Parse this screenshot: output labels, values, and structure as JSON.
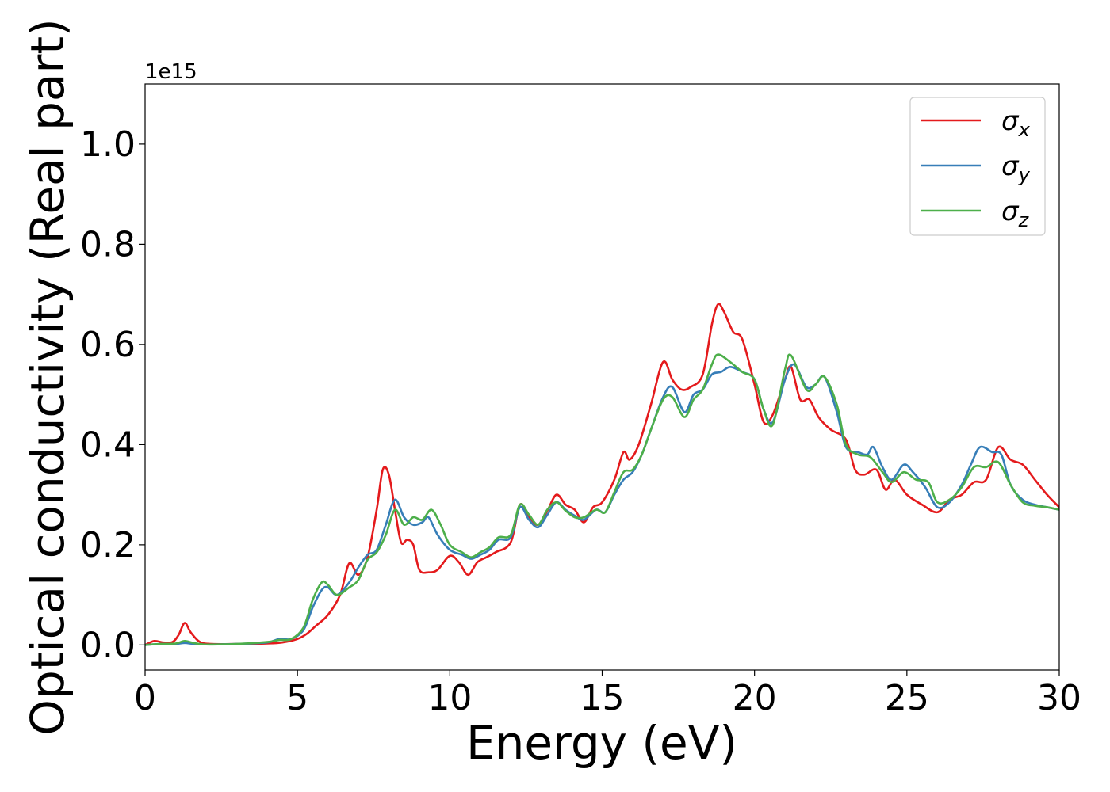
{
  "chart_data": {
    "type": "line",
    "title": "",
    "xlabel": "Energy (eV)",
    "ylabel": "Optical conductivity (Real part)",
    "y_offset_text": "1e15",
    "xlim": [
      0,
      30
    ],
    "ylim": [
      -0.05,
      1.12
    ],
    "x_ticks": [
      0,
      5,
      10,
      15,
      20,
      25,
      30
    ],
    "x_tick_labels": [
      "0",
      "5",
      "10",
      "15",
      "20",
      "25",
      "30"
    ],
    "y_ticks": [
      0.0,
      0.2,
      0.4,
      0.6,
      0.8,
      1.0
    ],
    "y_tick_labels": [
      "0.0",
      "0.2",
      "0.4",
      "0.6",
      "0.8",
      "1.0"
    ],
    "grid": false,
    "legend_position": "top-right",
    "series": [
      {
        "name": "σx",
        "label_base": "σ",
        "label_sub": "x",
        "color": "#e41a1c",
        "points": [
          [
            0,
            0.0
          ],
          [
            0.3,
            0.008
          ],
          [
            0.6,
            0.005
          ],
          [
            0.9,
            0.006
          ],
          [
            1.1,
            0.02
          ],
          [
            1.3,
            0.044
          ],
          [
            1.5,
            0.025
          ],
          [
            1.8,
            0.006
          ],
          [
            2.2,
            0.002
          ],
          [
            3.0,
            0.002
          ],
          [
            4.0,
            0.003
          ],
          [
            4.5,
            0.005
          ],
          [
            5.0,
            0.012
          ],
          [
            5.3,
            0.022
          ],
          [
            5.6,
            0.038
          ],
          [
            6.0,
            0.06
          ],
          [
            6.4,
            0.1
          ],
          [
            6.7,
            0.163
          ],
          [
            7.0,
            0.14
          ],
          [
            7.3,
            0.175
          ],
          [
            7.6,
            0.27
          ],
          [
            7.8,
            0.35
          ],
          [
            8.0,
            0.34
          ],
          [
            8.2,
            0.27
          ],
          [
            8.4,
            0.205
          ],
          [
            8.6,
            0.21
          ],
          [
            8.8,
            0.2
          ],
          [
            9.0,
            0.15
          ],
          [
            9.3,
            0.145
          ],
          [
            9.6,
            0.15
          ],
          [
            10.0,
            0.178
          ],
          [
            10.3,
            0.165
          ],
          [
            10.6,
            0.14
          ],
          [
            10.9,
            0.165
          ],
          [
            11.2,
            0.175
          ],
          [
            11.5,
            0.185
          ],
          [
            12.0,
            0.205
          ],
          [
            12.3,
            0.28
          ],
          [
            12.6,
            0.255
          ],
          [
            12.9,
            0.24
          ],
          [
            13.2,
            0.268
          ],
          [
            13.5,
            0.3
          ],
          [
            13.8,
            0.28
          ],
          [
            14.1,
            0.27
          ],
          [
            14.4,
            0.245
          ],
          [
            14.7,
            0.275
          ],
          [
            15.0,
            0.285
          ],
          [
            15.4,
            0.33
          ],
          [
            15.7,
            0.385
          ],
          [
            15.9,
            0.37
          ],
          [
            16.2,
            0.4
          ],
          [
            16.6,
            0.48
          ],
          [
            17.0,
            0.565
          ],
          [
            17.3,
            0.53
          ],
          [
            17.6,
            0.51
          ],
          [
            17.9,
            0.515
          ],
          [
            18.3,
            0.54
          ],
          [
            18.6,
            0.64
          ],
          [
            18.8,
            0.68
          ],
          [
            19.0,
            0.665
          ],
          [
            19.3,
            0.625
          ],
          [
            19.6,
            0.61
          ],
          [
            20.0,
            0.52
          ],
          [
            20.3,
            0.445
          ],
          [
            20.6,
            0.46
          ],
          [
            21.0,
            0.53
          ],
          [
            21.2,
            0.555
          ],
          [
            21.5,
            0.49
          ],
          [
            21.8,
            0.49
          ],
          [
            22.1,
            0.455
          ],
          [
            22.5,
            0.43
          ],
          [
            23.0,
            0.41
          ],
          [
            23.3,
            0.35
          ],
          [
            23.6,
            0.34
          ],
          [
            24.0,
            0.35
          ],
          [
            24.3,
            0.31
          ],
          [
            24.6,
            0.33
          ],
          [
            25.0,
            0.3
          ],
          [
            25.5,
            0.28
          ],
          [
            26.0,
            0.265
          ],
          [
            26.4,
            0.29
          ],
          [
            26.8,
            0.3
          ],
          [
            27.2,
            0.325
          ],
          [
            27.6,
            0.33
          ],
          [
            28.0,
            0.395
          ],
          [
            28.4,
            0.37
          ],
          [
            28.8,
            0.36
          ],
          [
            29.2,
            0.33
          ],
          [
            29.6,
            0.3
          ],
          [
            30.0,
            0.275
          ]
        ]
      },
      {
        "name": "σy",
        "label_base": "σ",
        "label_sub": "y",
        "color": "#377eb8",
        "points": [
          [
            0,
            0.0
          ],
          [
            0.5,
            0.002
          ],
          [
            1.0,
            0.002
          ],
          [
            1.3,
            0.004
          ],
          [
            1.6,
            0.002
          ],
          [
            2.0,
            0.001
          ],
          [
            3.0,
            0.002
          ],
          [
            4.0,
            0.005
          ],
          [
            4.4,
            0.012
          ],
          [
            4.8,
            0.012
          ],
          [
            5.2,
            0.03
          ],
          [
            5.5,
            0.075
          ],
          [
            5.8,
            0.11
          ],
          [
            6.0,
            0.115
          ],
          [
            6.3,
            0.1
          ],
          [
            6.7,
            0.125
          ],
          [
            7.0,
            0.155
          ],
          [
            7.3,
            0.18
          ],
          [
            7.6,
            0.19
          ],
          [
            7.9,
            0.24
          ],
          [
            8.2,
            0.29
          ],
          [
            8.5,
            0.255
          ],
          [
            8.8,
            0.24
          ],
          [
            9.1,
            0.245
          ],
          [
            9.3,
            0.255
          ],
          [
            9.6,
            0.22
          ],
          [
            10.0,
            0.19
          ],
          [
            10.4,
            0.18
          ],
          [
            10.7,
            0.172
          ],
          [
            11.0,
            0.18
          ],
          [
            11.3,
            0.19
          ],
          [
            11.6,
            0.21
          ],
          [
            12.0,
            0.215
          ],
          [
            12.3,
            0.275
          ],
          [
            12.6,
            0.25
          ],
          [
            12.9,
            0.235
          ],
          [
            13.2,
            0.26
          ],
          [
            13.5,
            0.285
          ],
          [
            13.8,
            0.27
          ],
          [
            14.1,
            0.258
          ],
          [
            14.4,
            0.25
          ],
          [
            14.8,
            0.27
          ],
          [
            15.1,
            0.265
          ],
          [
            15.4,
            0.3
          ],
          [
            15.7,
            0.33
          ],
          [
            16.0,
            0.345
          ],
          [
            16.3,
            0.38
          ],
          [
            16.6,
            0.43
          ],
          [
            17.0,
            0.495
          ],
          [
            17.3,
            0.515
          ],
          [
            17.7,
            0.465
          ],
          [
            18.0,
            0.5
          ],
          [
            18.3,
            0.51
          ],
          [
            18.6,
            0.54
          ],
          [
            18.9,
            0.545
          ],
          [
            19.2,
            0.555
          ],
          [
            19.6,
            0.545
          ],
          [
            20.0,
            0.53
          ],
          [
            20.3,
            0.47
          ],
          [
            20.6,
            0.445
          ],
          [
            21.0,
            0.53
          ],
          [
            21.3,
            0.56
          ],
          [
            21.7,
            0.515
          ],
          [
            22.0,
            0.52
          ],
          [
            22.3,
            0.535
          ],
          [
            22.7,
            0.465
          ],
          [
            23.0,
            0.395
          ],
          [
            23.4,
            0.385
          ],
          [
            23.7,
            0.38
          ],
          [
            23.9,
            0.395
          ],
          [
            24.2,
            0.355
          ],
          [
            24.5,
            0.33
          ],
          [
            24.9,
            0.36
          ],
          [
            25.2,
            0.345
          ],
          [
            25.6,
            0.315
          ],
          [
            26.0,
            0.275
          ],
          [
            26.4,
            0.285
          ],
          [
            26.8,
            0.32
          ],
          [
            27.1,
            0.36
          ],
          [
            27.4,
            0.395
          ],
          [
            27.8,
            0.385
          ],
          [
            28.1,
            0.38
          ],
          [
            28.4,
            0.32
          ],
          [
            28.8,
            0.29
          ],
          [
            29.2,
            0.28
          ],
          [
            29.6,
            0.275
          ],
          [
            30.0,
            0.27
          ]
        ]
      },
      {
        "name": "σz",
        "label_base": "σ",
        "label_sub": "z",
        "color": "#4daf4a",
        "points": [
          [
            0,
            0.0
          ],
          [
            0.5,
            0.002
          ],
          [
            1.0,
            0.003
          ],
          [
            1.3,
            0.008
          ],
          [
            1.6,
            0.004
          ],
          [
            2.0,
            0.001
          ],
          [
            3.0,
            0.002
          ],
          [
            4.0,
            0.006
          ],
          [
            4.4,
            0.01
          ],
          [
            4.8,
            0.012
          ],
          [
            5.2,
            0.035
          ],
          [
            5.5,
            0.09
          ],
          [
            5.8,
            0.125
          ],
          [
            6.0,
            0.12
          ],
          [
            6.3,
            0.1
          ],
          [
            6.7,
            0.115
          ],
          [
            7.0,
            0.13
          ],
          [
            7.3,
            0.17
          ],
          [
            7.6,
            0.185
          ],
          [
            7.9,
            0.22
          ],
          [
            8.2,
            0.27
          ],
          [
            8.5,
            0.24
          ],
          [
            8.8,
            0.255
          ],
          [
            9.1,
            0.25
          ],
          [
            9.4,
            0.27
          ],
          [
            9.7,
            0.24
          ],
          [
            10.0,
            0.2
          ],
          [
            10.4,
            0.185
          ],
          [
            10.7,
            0.175
          ],
          [
            11.0,
            0.185
          ],
          [
            11.3,
            0.195
          ],
          [
            11.6,
            0.215
          ],
          [
            12.0,
            0.22
          ],
          [
            12.3,
            0.28
          ],
          [
            12.6,
            0.26
          ],
          [
            12.9,
            0.24
          ],
          [
            13.2,
            0.27
          ],
          [
            13.5,
            0.285
          ],
          [
            13.8,
            0.268
          ],
          [
            14.1,
            0.255
          ],
          [
            14.4,
            0.255
          ],
          [
            14.8,
            0.27
          ],
          [
            15.1,
            0.265
          ],
          [
            15.4,
            0.305
          ],
          [
            15.7,
            0.345
          ],
          [
            16.0,
            0.35
          ],
          [
            16.3,
            0.38
          ],
          [
            16.6,
            0.43
          ],
          [
            17.0,
            0.49
          ],
          [
            17.3,
            0.495
          ],
          [
            17.7,
            0.455
          ],
          [
            18.0,
            0.49
          ],
          [
            18.3,
            0.51
          ],
          [
            18.6,
            0.56
          ],
          [
            18.8,
            0.58
          ],
          [
            19.2,
            0.565
          ],
          [
            19.6,
            0.545
          ],
          [
            20.0,
            0.53
          ],
          [
            20.3,
            0.47
          ],
          [
            20.6,
            0.44
          ],
          [
            21.0,
            0.55
          ],
          [
            21.2,
            0.578
          ],
          [
            21.7,
            0.51
          ],
          [
            22.0,
            0.52
          ],
          [
            22.3,
            0.535
          ],
          [
            22.7,
            0.48
          ],
          [
            23.0,
            0.4
          ],
          [
            23.4,
            0.38
          ],
          [
            23.8,
            0.375
          ],
          [
            24.2,
            0.345
          ],
          [
            24.5,
            0.325
          ],
          [
            24.9,
            0.345
          ],
          [
            25.3,
            0.33
          ],
          [
            25.7,
            0.325
          ],
          [
            26.0,
            0.285
          ],
          [
            26.4,
            0.29
          ],
          [
            26.8,
            0.315
          ],
          [
            27.2,
            0.355
          ],
          [
            27.6,
            0.355
          ],
          [
            28.0,
            0.365
          ],
          [
            28.4,
            0.32
          ],
          [
            28.8,
            0.285
          ],
          [
            29.2,
            0.278
          ],
          [
            29.6,
            0.275
          ],
          [
            30.0,
            0.27
          ]
        ]
      }
    ]
  }
}
